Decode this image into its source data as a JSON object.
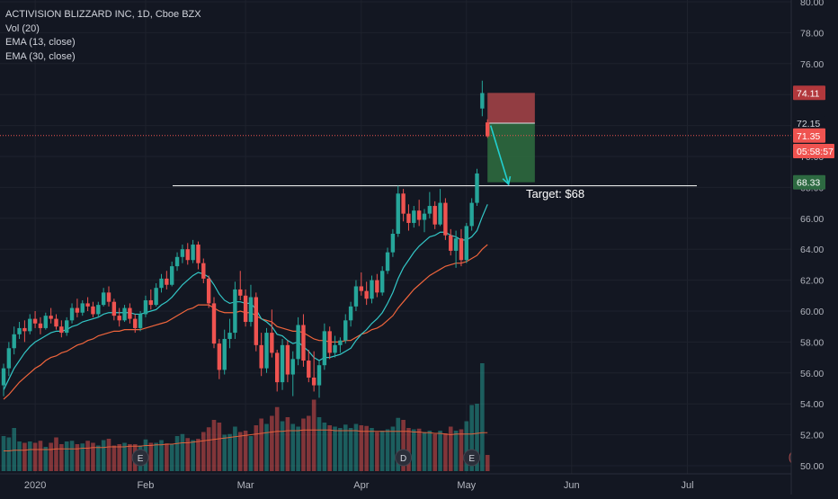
{
  "legend": {
    "title": "ACTIVISION BLIZZARD INC, 1D, Cboe BZX",
    "volume": "Vol (20)",
    "ema_fast": "EMA (13, close)",
    "ema_slow": "EMA (30, close)"
  },
  "colors": {
    "background": "#131722",
    "grid": "#1e222d",
    "up": "#26a69a",
    "down": "#ef5350",
    "ema_fast": "#33c7c7",
    "ema_slow": "#f0653c",
    "axis_text": "#b2b5be",
    "resistance": "#ffffff",
    "stop_zone": "#a94448",
    "target_zone": "#2f6e3f",
    "arrow": "#22cfcf"
  },
  "chart_data": {
    "type": "candlestick",
    "y_axis": {
      "min": 50,
      "max": 80,
      "ticks": [
        "80.00",
        "78.00",
        "76.00",
        "74.00",
        "72.00",
        "70.00",
        "68.00",
        "66.00",
        "64.00",
        "62.00",
        "60.00",
        "58.00",
        "56.00",
        "54.00",
        "52.00",
        "50.00"
      ]
    },
    "x_axis": {
      "labels": [
        {
          "text": "2020",
          "session": 6
        },
        {
          "text": "Feb",
          "session": 27
        },
        {
          "text": "Mar",
          "session": 46
        },
        {
          "text": "Apr",
          "session": 68
        },
        {
          "text": "May",
          "session": 88
        },
        {
          "text": "Jun",
          "session": 108
        },
        {
          "text": "Jul",
          "session": 130
        }
      ]
    },
    "candles": [
      [
        55.2,
        56.6,
        54.5,
        56.3
      ],
      [
        56.3,
        58.0,
        55.8,
        57.6
      ],
      [
        57.6,
        59.0,
        57.2,
        58.5
      ],
      [
        58.5,
        59.3,
        58.2,
        58.9
      ],
      [
        58.9,
        59.4,
        58.0,
        58.7
      ],
      [
        58.7,
        59.8,
        58.5,
        59.5
      ],
      [
        59.5,
        60.0,
        58.9,
        59.2
      ],
      [
        59.2,
        59.6,
        58.5,
        58.9
      ],
      [
        58.9,
        59.9,
        58.8,
        59.7
      ],
      [
        59.7,
        60.2,
        59.2,
        59.5
      ],
      [
        59.5,
        59.8,
        58.8,
        59.0
      ],
      [
        59.0,
        59.4,
        58.3,
        58.6
      ],
      [
        58.6,
        59.6,
        58.4,
        59.4
      ],
      [
        59.4,
        60.5,
        59.2,
        60.2
      ],
      [
        60.2,
        60.8,
        59.6,
        59.9
      ],
      [
        59.9,
        60.7,
        59.7,
        60.5
      ],
      [
        60.5,
        60.9,
        60.0,
        60.3
      ],
      [
        60.3,
        60.6,
        59.6,
        59.8
      ],
      [
        59.8,
        60.6,
        59.6,
        60.4
      ],
      [
        60.4,
        61.5,
        60.3,
        61.2
      ],
      [
        61.2,
        61.6,
        60.3,
        60.6
      ],
      [
        60.6,
        60.8,
        59.4,
        59.7
      ],
      [
        59.7,
        60.2,
        59.0,
        59.4
      ],
      [
        59.4,
        60.4,
        59.3,
        60.2
      ],
      [
        60.2,
        60.5,
        59.2,
        59.5
      ],
      [
        59.5,
        59.8,
        58.6,
        58.9
      ],
      [
        58.9,
        60.0,
        58.7,
        59.8
      ],
      [
        59.8,
        61.0,
        59.6,
        60.7
      ],
      [
        60.7,
        61.4,
        60.1,
        60.4
      ],
      [
        60.4,
        61.8,
        60.3,
        61.5
      ],
      [
        61.5,
        62.4,
        61.2,
        62.1
      ],
      [
        62.1,
        62.6,
        61.4,
        61.7
      ],
      [
        61.7,
        63.2,
        61.6,
        62.9
      ],
      [
        62.9,
        63.8,
        62.6,
        63.5
      ],
      [
        63.5,
        64.3,
        63.1,
        64.0
      ],
      [
        64.0,
        64.4,
        63.0,
        63.3
      ],
      [
        63.3,
        64.6,
        63.1,
        64.3
      ],
      [
        64.3,
        64.5,
        62.7,
        63.1
      ],
      [
        63.1,
        63.4,
        61.8,
        62.1
      ],
      [
        62.1,
        62.3,
        60.2,
        60.5
      ],
      [
        60.5,
        60.9,
        57.6,
        57.9
      ],
      [
        57.9,
        58.2,
        55.6,
        56.2
      ],
      [
        56.2,
        58.8,
        55.9,
        58.2
      ],
      [
        58.2,
        59.5,
        57.6,
        58.6
      ],
      [
        58.6,
        61.9,
        58.2,
        61.4
      ],
      [
        61.4,
        62.6,
        60.7,
        61.0
      ],
      [
        61.0,
        61.4,
        59.0,
        59.3
      ],
      [
        59.3,
        61.7,
        59.0,
        60.9
      ],
      [
        60.9,
        61.2,
        57.4,
        57.8
      ],
      [
        57.8,
        58.6,
        55.8,
        56.3
      ],
      [
        56.3,
        58.9,
        56.0,
        58.6
      ],
      [
        58.6,
        60.1,
        57.0,
        57.3
      ],
      [
        57.3,
        57.5,
        54.8,
        55.4
      ],
      [
        55.4,
        58.2,
        54.9,
        57.8
      ],
      [
        57.8,
        58.1,
        55.4,
        55.9
      ],
      [
        55.9,
        57.4,
        54.5,
        56.9
      ],
      [
        56.9,
        59.6,
        56.5,
        59.1
      ],
      [
        59.1,
        59.8,
        56.4,
        56.8
      ],
      [
        56.8,
        57.5,
        55.4,
        55.7
      ],
      [
        55.7,
        57.4,
        54.8,
        55.2
      ],
      [
        55.2,
        56.8,
        54.4,
        56.5
      ],
      [
        56.5,
        59.2,
        56.2,
        58.7
      ],
      [
        58.7,
        59.0,
        56.9,
        57.3
      ],
      [
        57.3,
        58.4,
        57.0,
        57.8
      ],
      [
        57.8,
        58.3,
        57.3,
        58.1
      ],
      [
        58.1,
        59.8,
        57.9,
        59.4
      ],
      [
        59.4,
        60.6,
        59.0,
        60.3
      ],
      [
        60.3,
        62.0,
        60.0,
        61.6
      ],
      [
        61.6,
        62.5,
        61.0,
        61.3
      ],
      [
        61.3,
        61.9,
        60.4,
        60.8
      ],
      [
        60.8,
        62.3,
        60.5,
        62.0
      ],
      [
        62.0,
        62.4,
        60.9,
        61.2
      ],
      [
        61.2,
        62.9,
        61.0,
        62.6
      ],
      [
        62.6,
        64.1,
        62.4,
        63.8
      ],
      [
        63.8,
        65.3,
        63.5,
        65.0
      ],
      [
        65.0,
        68.1,
        64.8,
        67.6
      ],
      [
        67.6,
        67.9,
        65.8,
        66.3
      ],
      [
        66.3,
        66.9,
        65.2,
        65.7
      ],
      [
        65.7,
        66.8,
        65.4,
        66.5
      ],
      [
        66.5,
        67.2,
        65.5,
        65.9
      ],
      [
        65.9,
        66.6,
        65.1,
        66.3
      ],
      [
        66.3,
        67.7,
        66.0,
        66.8
      ],
      [
        66.8,
        67.1,
        65.3,
        65.6
      ],
      [
        65.6,
        67.9,
        65.5,
        67.0
      ],
      [
        67.0,
        67.3,
        64.6,
        64.9
      ],
      [
        64.9,
        65.3,
        63.6,
        63.9
      ],
      [
        63.9,
        65.2,
        62.8,
        64.7
      ],
      [
        64.7,
        65.3,
        62.9,
        63.3
      ],
      [
        63.3,
        65.7,
        63.1,
        65.5
      ],
      [
        65.5,
        67.3,
        65.2,
        67.0
      ],
      [
        67.0,
        69.2,
        66.8,
        68.9
      ],
      [
        73.1,
        74.9,
        72.6,
        74.1
      ],
      [
        72.2,
        72.4,
        71.2,
        71.3
      ]
    ],
    "ema13": [
      54.9,
      55.6,
      56.3,
      56.8,
      57.3,
      57.7,
      58.0,
      58.2,
      58.4,
      58.6,
      58.7,
      58.7,
      58.8,
      59.0,
      59.1,
      59.3,
      59.4,
      59.5,
      59.6,
      59.8,
      59.9,
      59.9,
      59.9,
      59.9,
      59.9,
      59.8,
      59.8,
      59.9,
      60.0,
      60.1,
      60.4,
      60.6,
      60.9,
      61.3,
      61.7,
      62.0,
      62.3,
      62.5,
      62.4,
      62.2,
      61.7,
      61.1,
      60.7,
      60.5,
      60.6,
      60.6,
      60.5,
      60.5,
      60.1,
      59.5,
      59.3,
      59.0,
      58.5,
      58.4,
      58.1,
      57.9,
      58.0,
      57.7,
      57.4,
      57.0,
      56.8,
      57.0,
      57.0,
      57.1,
      57.2,
      57.4,
      57.6,
      58.1,
      58.5,
      58.8,
      59.2,
      59.5,
      59.9,
      60.5,
      61.2,
      62.1,
      62.8,
      63.3,
      63.8,
      64.2,
      64.5,
      64.8,
      64.9,
      65.1,
      65.1,
      64.9,
      64.8,
      64.6,
      64.6,
      64.8,
      65.2,
      66.1,
      66.9
    ],
    "ema30": [
      54.3,
      54.6,
      55.0,
      55.4,
      55.7,
      56.0,
      56.3,
      56.5,
      56.8,
      57.0,
      57.1,
      57.3,
      57.4,
      57.6,
      57.8,
      57.9,
      58.1,
      58.2,
      58.4,
      58.5,
      58.6,
      58.7,
      58.7,
      58.8,
      58.8,
      58.8,
      58.8,
      58.9,
      59.0,
      59.1,
      59.2,
      59.3,
      59.5,
      59.7,
      59.9,
      60.1,
      60.2,
      60.4,
      60.4,
      60.4,
      60.2,
      60.0,
      59.9,
      59.9,
      59.9,
      60.0,
      59.9,
      59.9,
      59.7,
      59.5,
      59.4,
      59.3,
      59.0,
      58.9,
      58.8,
      58.7,
      58.7,
      58.6,
      58.4,
      58.2,
      58.1,
      58.1,
      58.0,
      58.0,
      58.0,
      58.1,
      58.1,
      58.3,
      58.5,
      58.6,
      58.8,
      58.9,
      59.1,
      59.4,
      59.7,
      60.2,
      60.6,
      61.0,
      61.4,
      61.7,
      62.0,
      62.3,
      62.5,
      62.7,
      62.9,
      63.0,
      63.1,
      63.1,
      63.2,
      63.4,
      63.6,
      64.0,
      64.3
    ],
    "volume": [
      52,
      50,
      64,
      44,
      42,
      44,
      42,
      45,
      36,
      42,
      50,
      40,
      44,
      45,
      40,
      41,
      45,
      42,
      38,
      46,
      48,
      38,
      40,
      42,
      40,
      40,
      38,
      47,
      42,
      42,
      46,
      41,
      40,
      52,
      55,
      49,
      46,
      48,
      58,
      65,
      76,
      72,
      54,
      55,
      66,
      58,
      60,
      52,
      68,
      78,
      70,
      82,
      95,
      74,
      80,
      70,
      66,
      78,
      82,
      106,
      80,
      72,
      68,
      66,
      64,
      69,
      64,
      70,
      68,
      67,
      64,
      58,
      60,
      62,
      66,
      79,
      76,
      64,
      62,
      63,
      58,
      60,
      55,
      60,
      56,
      66,
      60,
      62,
      74,
      98,
      100,
      160,
      24
    ],
    "volume_ma": [
      30,
      30,
      31,
      31,
      31,
      32,
      32,
      32,
      32,
      32,
      33,
      33,
      33,
      33,
      33,
      34,
      34,
      35,
      35,
      35,
      36,
      36,
      36,
      36,
      37,
      37,
      37,
      38,
      38,
      39,
      39,
      40,
      40,
      41,
      42,
      42,
      43,
      44,
      45,
      46,
      47,
      48,
      49,
      50,
      51,
      52,
      53,
      54,
      55,
      56,
      57,
      58,
      59,
      59,
      60,
      60,
      60,
      61,
      61,
      61,
      61,
      61,
      61,
      60,
      60,
      60,
      60,
      60,
      59,
      59,
      59,
      59,
      59,
      59,
      59,
      59,
      59,
      59,
      58,
      58,
      57,
      57,
      56,
      56,
      55,
      54,
      55,
      55,
      55,
      55,
      56,
      57,
      57
    ],
    "volume_axis_max": 260,
    "resistance_level": 68.1,
    "trade_box": {
      "entry": 72.15,
      "stop": 74.11,
      "target": 68.33,
      "start_session": 92,
      "end_session": 101
    },
    "arrow": {
      "from_session": 92.6,
      "from_price": 72.0,
      "to_session": 96.0,
      "to_price": 68.2
    },
    "earnings_markers": [
      {
        "label": "E",
        "session": 26
      },
      {
        "label": "D",
        "session": 76
      },
      {
        "label": "E",
        "session": 89
      }
    ],
    "price_labels": [
      {
        "text": "74.11",
        "value": 74.11,
        "style": "stop"
      },
      {
        "text": "72.15",
        "value": 72.15,
        "style": "entry"
      },
      {
        "text": "71.35",
        "value": 71.35,
        "style": "last"
      },
      {
        "text": "05:58:57",
        "value": 70.35,
        "style": "last"
      },
      {
        "text": "68.33",
        "value": 68.33,
        "style": "target"
      }
    ],
    "last_price": 71.35,
    "annotation": "Target: $68"
  }
}
